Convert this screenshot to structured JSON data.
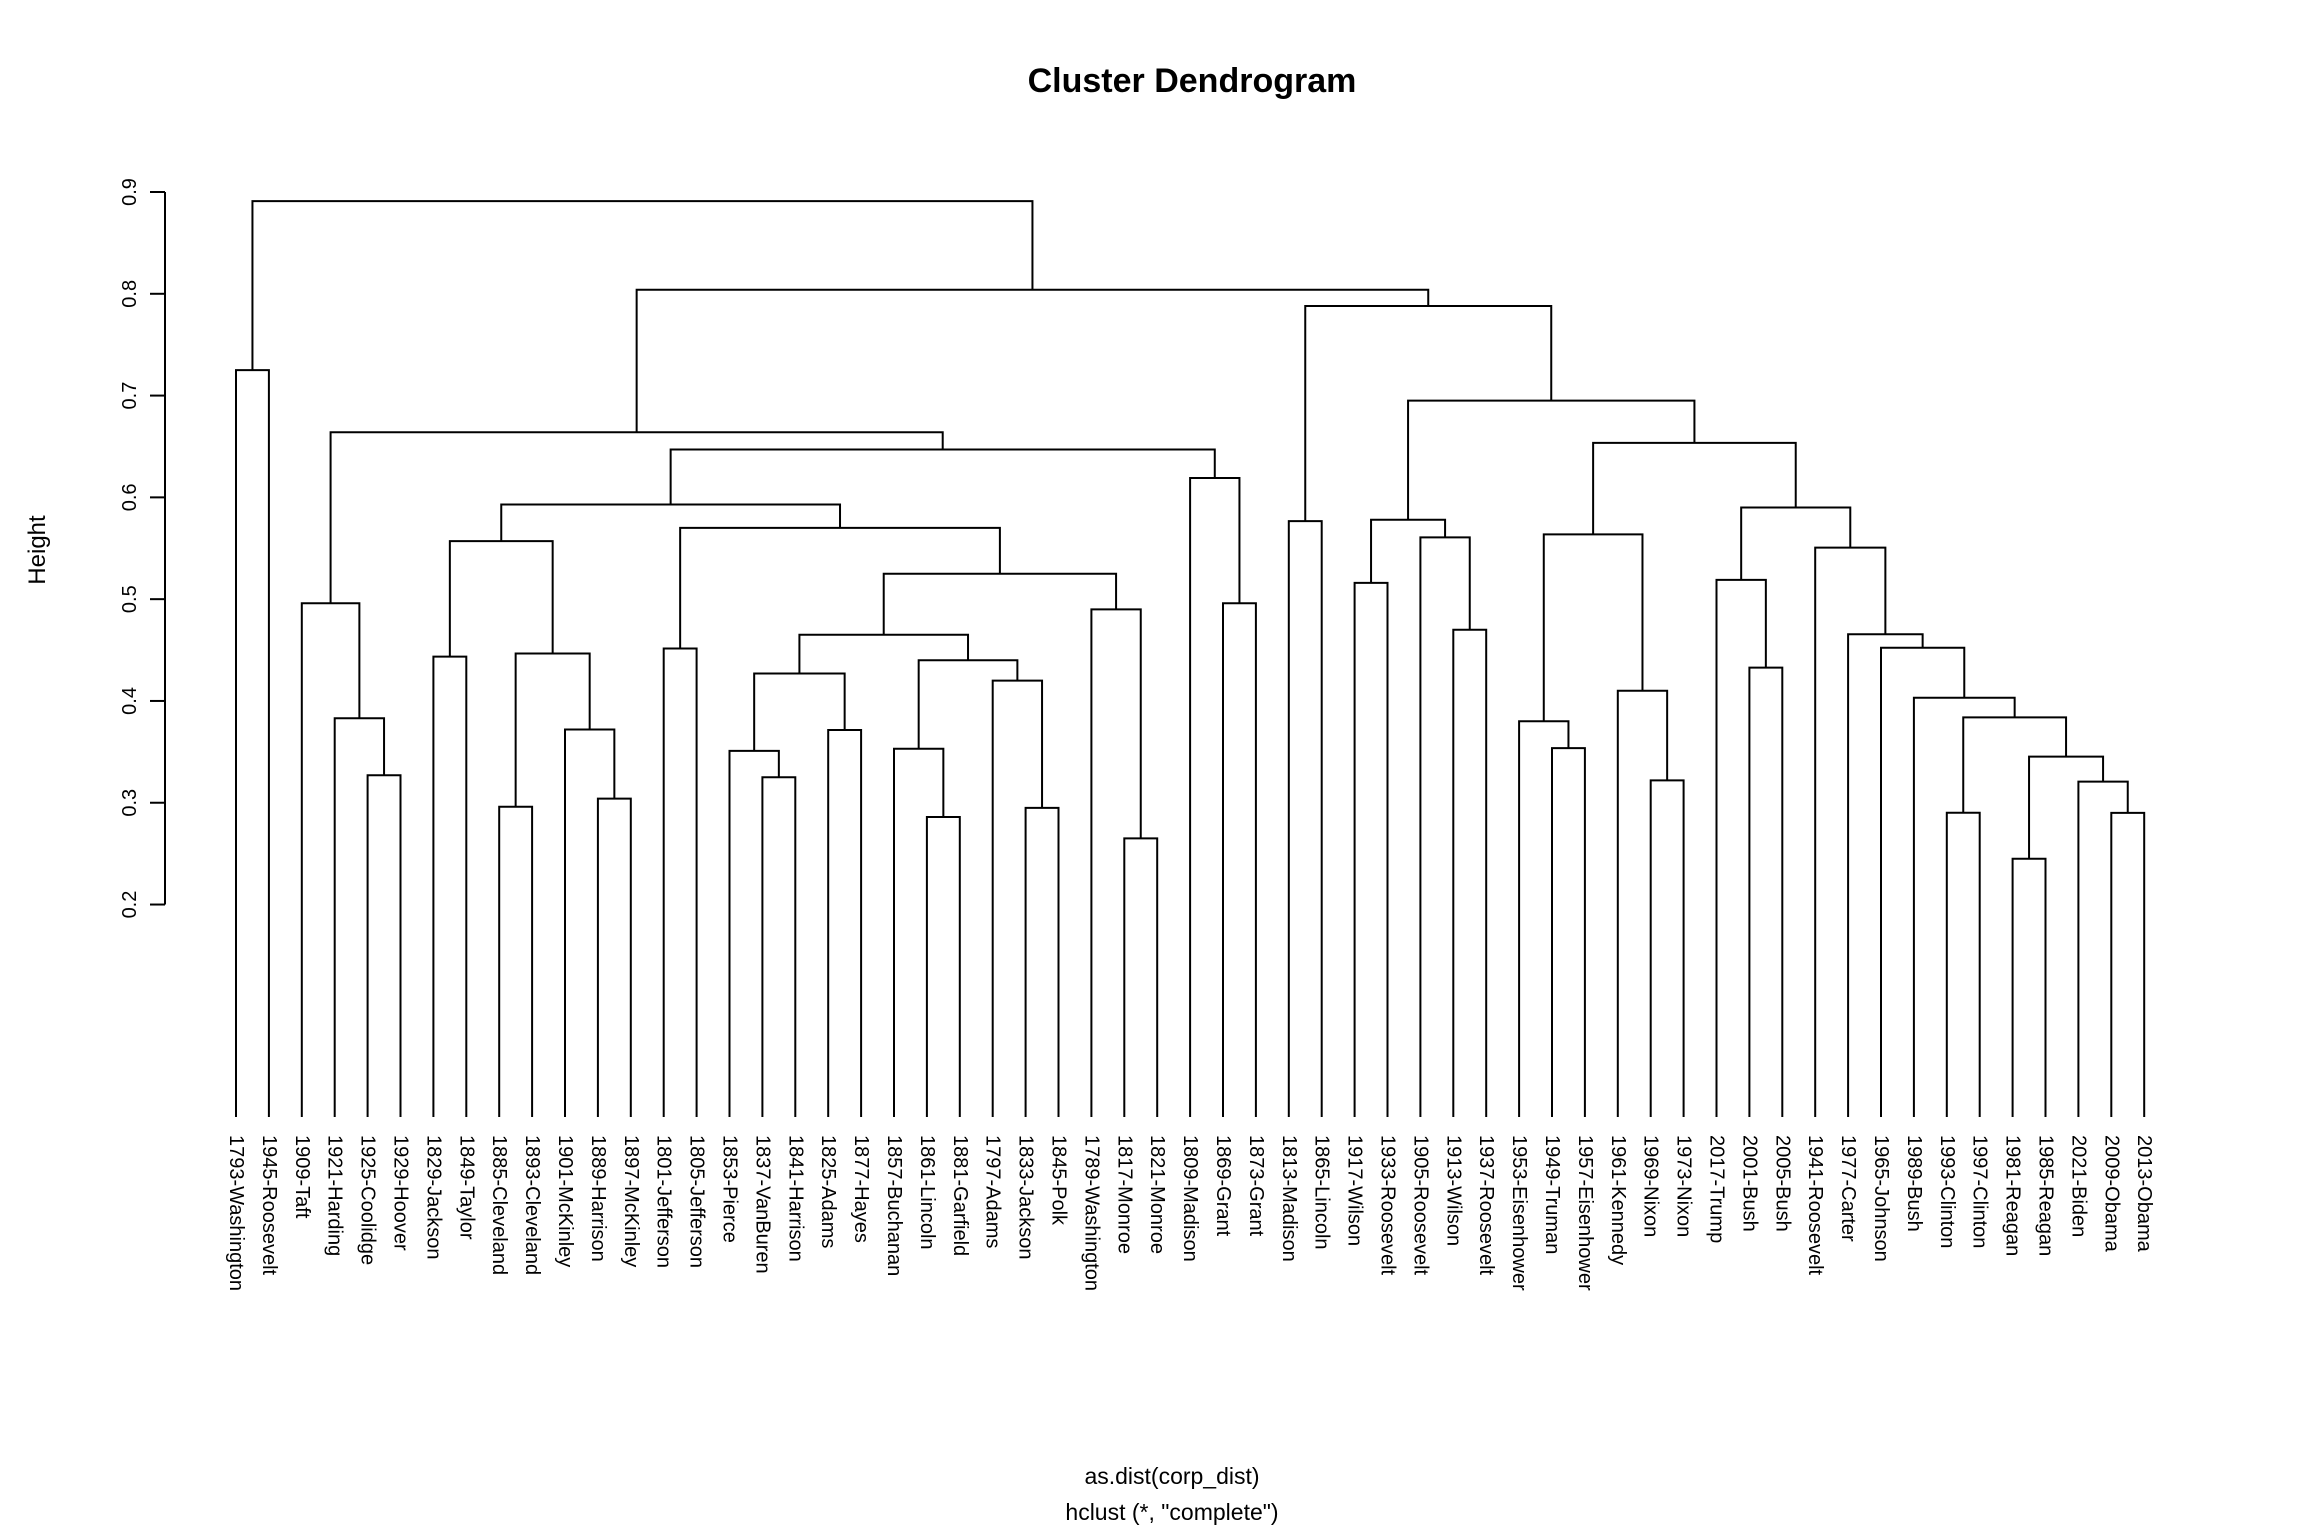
{
  "title": "Cluster Dendrogram",
  "ylab": "Height",
  "xlab_line1": "as.dist(corp_dist)",
  "xlab_line2": "hclust (*, \"complete\")",
  "colors": {
    "line": "#000000",
    "text": "#000000",
    "background": "#ffffff"
  },
  "chart_data": {
    "type": "dendrogram",
    "title": "Cluster Dendrogram",
    "xlabel": [
      "as.dist(corp_dist)",
      "hclust (*, \"complete\")"
    ],
    "ylabel": "Height",
    "ylim": [
      0.2,
      0.9
    ],
    "axis_ticks": [
      "0.2",
      "0.3",
      "0.4",
      "0.5",
      "0.6",
      "0.7",
      "0.8",
      "0.9"
    ],
    "grid": false,
    "leaf_order": [
      "1793-Washington",
      "1945-Roosevelt",
      "1909-Taft",
      "1921-Harding",
      "1925-Coolidge",
      "1929-Hoover",
      "1829-Jackson",
      "1849-Taylor",
      "1885-Cleveland",
      "1893-Cleveland",
      "1901-McKinley",
      "1889-Harrison",
      "1897-McKinley",
      "1801-Jefferson",
      "1805-Jefferson",
      "1853-Pierce",
      "1837-VanBuren",
      "1841-Harrison",
      "1825-Adams",
      "1877-Hayes",
      "1857-Buchanan",
      "1861-Lincoln",
      "1881-Garfield",
      "1797-Adams",
      "1833-Jackson",
      "1845-Polk",
      "1789-Washington",
      "1817-Monroe",
      "1821-Monroe",
      "1809-Madison",
      "1869-Grant",
      "1873-Grant",
      "1813-Madison",
      "1865-Lincoln",
      "1917-Wilson",
      "1933-Roosevelt",
      "1905-Roosevelt",
      "1913-Wilson",
      "1937-Roosevelt",
      "1953-Eisenhower",
      "1949-Truman",
      "1957-Eisenhower",
      "1961-Kennedy",
      "1969-Nixon",
      "1973-Nixon",
      "2017-Trump",
      "2001-Bush",
      "2005-Bush",
      "1941-Roosevelt",
      "1977-Carter",
      "1965-Johnson",
      "1989-Bush",
      "1993-Clinton",
      "1997-Clinton",
      "1981-Reagan",
      "1985-Reagan",
      "2021-Biden",
      "2009-Obama",
      "2013-Obama"
    ],
    "tree": {
      "h": 0.891,
      "c": [
        {
          "h": 0.725,
          "c": [
            0,
            1
          ]
        },
        {
          "h": 0.804,
          "c": [
            {
              "h": 0.664,
              "c": [
                {
                  "h": 0.496,
                  "c": [
                    2,
                    {
                      "h": 0.383,
                      "c": [
                        3,
                        {
                          "h": 0.327,
                          "c": [
                            4,
                            5
                          ]
                        }
                      ]
                    }
                  ]
                },
                {
                  "h": 0.647,
                  "c": [
                    {
                      "h": 0.593,
                      "c": [
                        {
                          "h": 0.557,
                          "c": [
                            {
                              "h": 0.4435,
                              "c": [
                                6,
                                7
                              ]
                            },
                            {
                              "h": 0.4466,
                              "c": [
                                {
                                  "h": 0.296,
                                  "c": [
                                    8,
                                    9
                                  ]
                                },
                                {
                                  "h": 0.372,
                                  "c": [
                                    10,
                                    {
                                      "h": 0.304,
                                      "c": [
                                        11,
                                        12
                                      ]
                                    }
                                  ]
                                }
                              ]
                            }
                          ]
                        },
                        {
                          "h": 0.57,
                          "c": [
                            {
                              "h": 0.4515,
                              "c": [
                                13,
                                14
                              ]
                            },
                            {
                              "h": 0.525,
                              "c": [
                                {
                                  "h": 0.465,
                                  "c": [
                                    {
                                      "h": 0.427,
                                      "c": [
                                        {
                                          "h": 0.351,
                                          "c": [
                                            15,
                                            {
                                              "h": 0.325,
                                              "c": [
                                                16,
                                                17
                                              ]
                                            }
                                          ]
                                        },
                                        {
                                          "h": 0.3715,
                                          "c": [
                                            18,
                                            19
                                          ]
                                        }
                                      ]
                                    },
                                    {
                                      "h": 0.44,
                                      "c": [
                                        {
                                          "h": 0.353,
                                          "c": [
                                            20,
                                            {
                                              "h": 0.286,
                                              "c": [
                                                21,
                                                22
                                              ]
                                            }
                                          ]
                                        },
                                        {
                                          "h": 0.42,
                                          "c": [
                                            23,
                                            {
                                              "h": 0.295,
                                              "c": [
                                                24,
                                                25
                                              ]
                                            }
                                          ]
                                        }
                                      ]
                                    }
                                  ]
                                },
                                {
                                  "h": 0.49,
                                  "c": [
                                    26,
                                    {
                                      "h": 0.265,
                                      "c": [
                                        27,
                                        28
                                      ]
                                    }
                                  ]
                                }
                              ]
                            }
                          ]
                        }
                      ]
                    },
                    {
                      "h": 0.619,
                      "c": [
                        29,
                        {
                          "h": 0.496,
                          "c": [
                            30,
                            31
                          ]
                        }
                      ]
                    }
                  ]
                }
              ]
            },
            {
              "h": 0.788,
              "c": [
                {
                  "h": 0.5767,
                  "c": [
                    32,
                    33
                  ]
                },
                {
                  "h": 0.695,
                  "c": [
                    {
                      "h": 0.578,
                      "c": [
                        {
                          "h": 0.516,
                          "c": [
                            34,
                            35
                          ]
                        },
                        {
                          "h": 0.5607,
                          "c": [
                            36,
                            {
                              "h": 0.47,
                              "c": [
                                37,
                                38
                              ]
                            }
                          ]
                        }
                      ]
                    },
                    {
                      "h": 0.6535,
                      "c": [
                        {
                          "h": 0.5637,
                          "c": [
                            {
                              "h": 0.38,
                              "c": [
                                39,
                                {
                                  "h": 0.3536,
                                  "c": [
                                    40,
                                    41
                                  ]
                                }
                              ]
                            },
                            {
                              "h": 0.41,
                              "c": [
                                42,
                                {
                                  "h": 0.322,
                                  "c": [
                                    43,
                                    44
                                  ]
                                }
                              ]
                            }
                          ]
                        },
                        {
                          "h": 0.59,
                          "c": [
                            {
                              "h": 0.519,
                              "c": [
                                45,
                                {
                                  "h": 0.4327,
                                  "c": [
                                    46,
                                    47
                                  ]
                                }
                              ]
                            },
                            {
                              "h": 0.5506,
                              "c": [
                                48,
                                {
                                  "h": 0.4655,
                                  "c": [
                                    49,
                                    {
                                      "h": 0.4523,
                                      "c": [
                                        50,
                                        {
                                          "h": 0.4032,
                                          "c": [
                                            51,
                                            {
                                              "h": 0.3839,
                                              "c": [
                                                {
                                                  "h": 0.2902,
                                                  "c": [
                                                    52,
                                                    53
                                                  ]
                                                },
                                                {
                                                  "h": 0.3453,
                                                  "c": [
                                                    {
                                                      "h": 0.245,
                                                      "c": [
                                                        54,
                                                        55
                                                      ]
                                                    },
                                                    {
                                                      "h": 0.3207,
                                                      "c": [
                                                        56,
                                                        {
                                                          "h": 0.29,
                                                          "c": [
                                                            57,
                                                            58
                                                          ]
                                                        }
                                                      ]
                                                    }
                                                  ]
                                                }
                                              ]
                                            }
                                          ]
                                        }
                                      ]
                                    }
                                  ]
                                }
                              ]
                            }
                          ]
                        }
                      ]
                    }
                  ]
                }
              ]
            }
          ]
        }
      ]
    }
  }
}
